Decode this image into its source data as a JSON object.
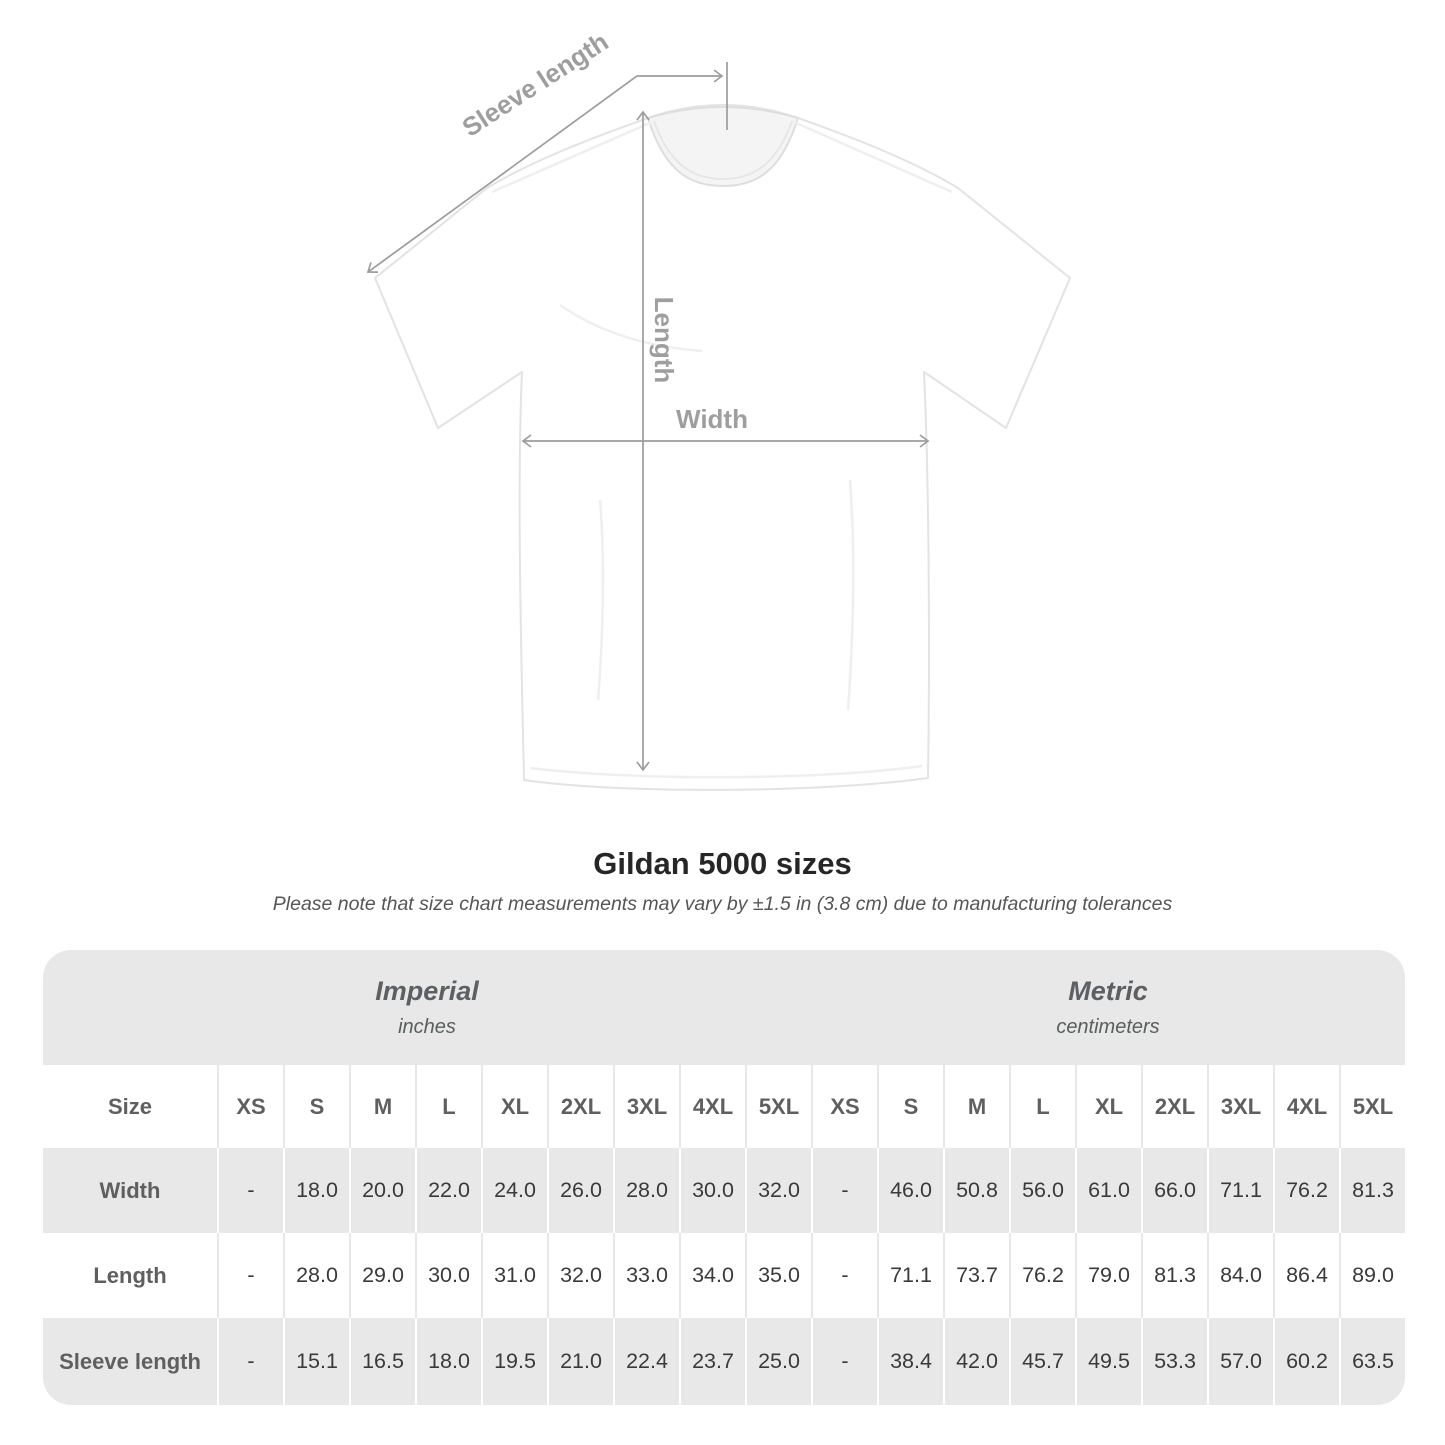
{
  "title": "Gildan 5000 sizes",
  "note": "Please note that size chart measurements may vary by ±1.5 in (3.8 cm) due to manufacturing tolerances",
  "diagram": {
    "labels": {
      "sleeve": "Sleeve length",
      "length": "Length",
      "width": "Width"
    }
  },
  "table": {
    "size_label": "Size",
    "groups": [
      {
        "name": "Imperial",
        "unit": "inches"
      },
      {
        "name": "Metric",
        "unit": "centimeters"
      }
    ],
    "sizes": [
      "XS",
      "S",
      "M",
      "L",
      "XL",
      "2XL",
      "3XL",
      "4XL",
      "5XL"
    ],
    "rows": [
      {
        "label": "Width",
        "imperial": [
          "-",
          "18.0",
          "20.0",
          "22.0",
          "24.0",
          "26.0",
          "28.0",
          "30.0",
          "32.0"
        ],
        "metric": [
          "-",
          "46.0",
          "50.8",
          "56.0",
          "61.0",
          "66.0",
          "71.1",
          "76.2",
          "81.3"
        ]
      },
      {
        "label": "Length",
        "imperial": [
          "-",
          "28.0",
          "29.0",
          "30.0",
          "31.0",
          "32.0",
          "33.0",
          "34.0",
          "35.0"
        ],
        "metric": [
          "-",
          "71.1",
          "73.7",
          "76.2",
          "79.0",
          "81.3",
          "84.0",
          "86.4",
          "89.0"
        ]
      },
      {
        "label": "Sleeve length",
        "imperial": [
          "-",
          "15.1",
          "16.5",
          "18.0",
          "19.5",
          "21.0",
          "22.4",
          "23.7",
          "25.0"
        ],
        "metric": [
          "-",
          "38.4",
          "42.0",
          "45.7",
          "49.5",
          "53.3",
          "57.0",
          "60.2",
          "63.5"
        ]
      }
    ]
  },
  "colors": {
    "table_band_gray": "#e8e8e8",
    "arrow_gray": "#9c9c9c",
    "shirt_outline": "#e3e3e3",
    "value_text": "#3a3a3a",
    "label_text": "#5f5f5f"
  }
}
